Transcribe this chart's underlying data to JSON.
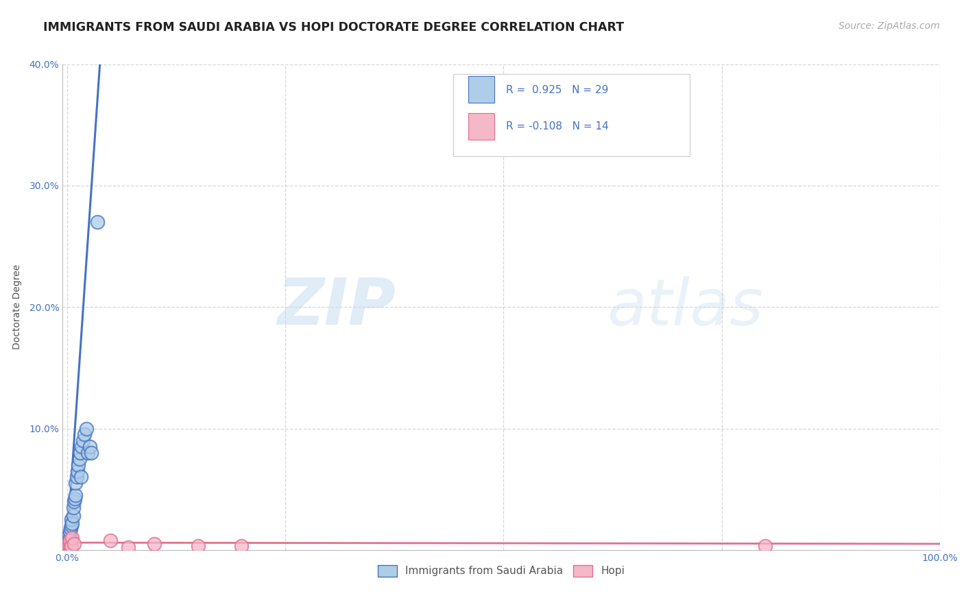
{
  "title": "IMMIGRANTS FROM SAUDI ARABIA VS HOPI DOCTORATE DEGREE CORRELATION CHART",
  "source": "Source: ZipAtlas.com",
  "ylabel": "Doctorate Degree",
  "xlim": [
    -0.005,
    1.0
  ],
  "ylim": [
    0,
    0.4
  ],
  "x_ticks": [
    0.0,
    0.25,
    0.5,
    0.75,
    1.0
  ],
  "x_tick_labels": [
    "0.0%",
    "",
    "",
    "",
    "100.0%"
  ],
  "y_ticks": [
    0.1,
    0.2,
    0.3,
    0.4
  ],
  "y_tick_labels": [
    "10.0%",
    "20.0%",
    "30.0%",
    "40.0%"
  ],
  "background_color": "#ffffff",
  "grid_color": "#cccccc",
  "blue_R": 0.925,
  "blue_N": 29,
  "pink_R": -0.108,
  "pink_N": 14,
  "blue_x": [
    0.001,
    0.002,
    0.002,
    0.003,
    0.003,
    0.004,
    0.005,
    0.005,
    0.006,
    0.007,
    0.007,
    0.008,
    0.009,
    0.01,
    0.01,
    0.011,
    0.012,
    0.013,
    0.014,
    0.015,
    0.016,
    0.017,
    0.018,
    0.02,
    0.022,
    0.024,
    0.026,
    0.028,
    0.035
  ],
  "blue_y": [
    0.005,
    0.008,
    0.012,
    0.01,
    0.015,
    0.018,
    0.02,
    0.025,
    0.022,
    0.028,
    0.035,
    0.04,
    0.042,
    0.045,
    0.055,
    0.06,
    0.065,
    0.07,
    0.075,
    0.08,
    0.06,
    0.085,
    0.09,
    0.095,
    0.1,
    0.08,
    0.085,
    0.08,
    0.27
  ],
  "blue_line_x0": -0.002,
  "blue_line_slope": 10.5,
  "blue_line_intercept": 0.005,
  "pink_x": [
    0.001,
    0.002,
    0.003,
    0.003,
    0.004,
    0.005,
    0.006,
    0.008,
    0.05,
    0.07,
    0.1,
    0.15,
    0.2,
    0.8
  ],
  "pink_y": [
    0.005,
    0.003,
    0.004,
    0.008,
    0.002,
    0.003,
    0.01,
    0.005,
    0.008,
    0.002,
    0.005,
    0.003,
    0.003,
    0.003
  ],
  "pink_line_slope": -0.001,
  "pink_line_intercept": 0.006,
  "blue_color": "#aecde8",
  "blue_edge_color": "#4472c4",
  "pink_color": "#f4b8c8",
  "pink_edge_color": "#e07090",
  "legend_blue_series": "Immigrants from Saudi Arabia",
  "legend_pink_series": "Hopi",
  "title_fontsize": 12.5,
  "axis_label_fontsize": 10,
  "tick_fontsize": 10,
  "source_fontsize": 10
}
